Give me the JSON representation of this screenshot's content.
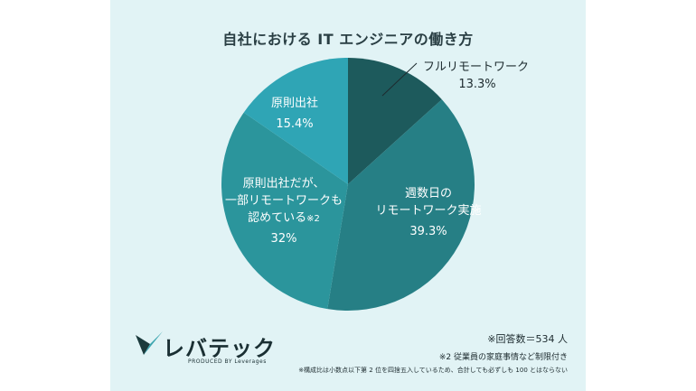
{
  "title": "自社における IT エンジニアの働き方",
  "chart_data": {
    "type": "pie",
    "slices": [
      {
        "label": "フルリモートワーク",
        "value": 13.3,
        "value_label": "13.3",
        "color": "#1d5a5c"
      },
      {
        "label": "週数日のリモートワーク実施",
        "value": 39.3,
        "value_label": "39.3",
        "color": "#267f85"
      },
      {
        "label": "原則出社だが、一部リモートワークも認めている※2",
        "value": 32,
        "value_label": "32",
        "color": "#2b959c"
      },
      {
        "label": "原則出社",
        "value": 15.4,
        "value_label": "15.4",
        "color": "#2fa5b5"
      }
    ],
    "unit": "%"
  },
  "labels": {
    "full_remote": {
      "name": "フルリモートワーク",
      "value": "13.3%"
    },
    "some_days": {
      "name1": "週数日の",
      "name2": "リモートワーク実施",
      "value": "39.3%"
    },
    "office_partial": {
      "name1": "原則出社だが、",
      "name2": "一部リモートワークも",
      "name3": "認めている",
      "note": "※2",
      "value": "32%"
    },
    "office": {
      "name": "原則出社",
      "value": "15.4%"
    }
  },
  "logo": {
    "brand": "レバテック",
    "sub": "PRODUCED BY Leverages",
    "colors": [
      "#1b3a3c",
      "#3da6b0"
    ]
  },
  "notes": {
    "respondents": "※回答数＝534 人",
    "note2": "※2 従業員の家庭事情など制限付き",
    "note3": "※構成比は小数点以下第 2 位を四捨五入しているため、合計しても必ずしも 100 とはならない"
  }
}
